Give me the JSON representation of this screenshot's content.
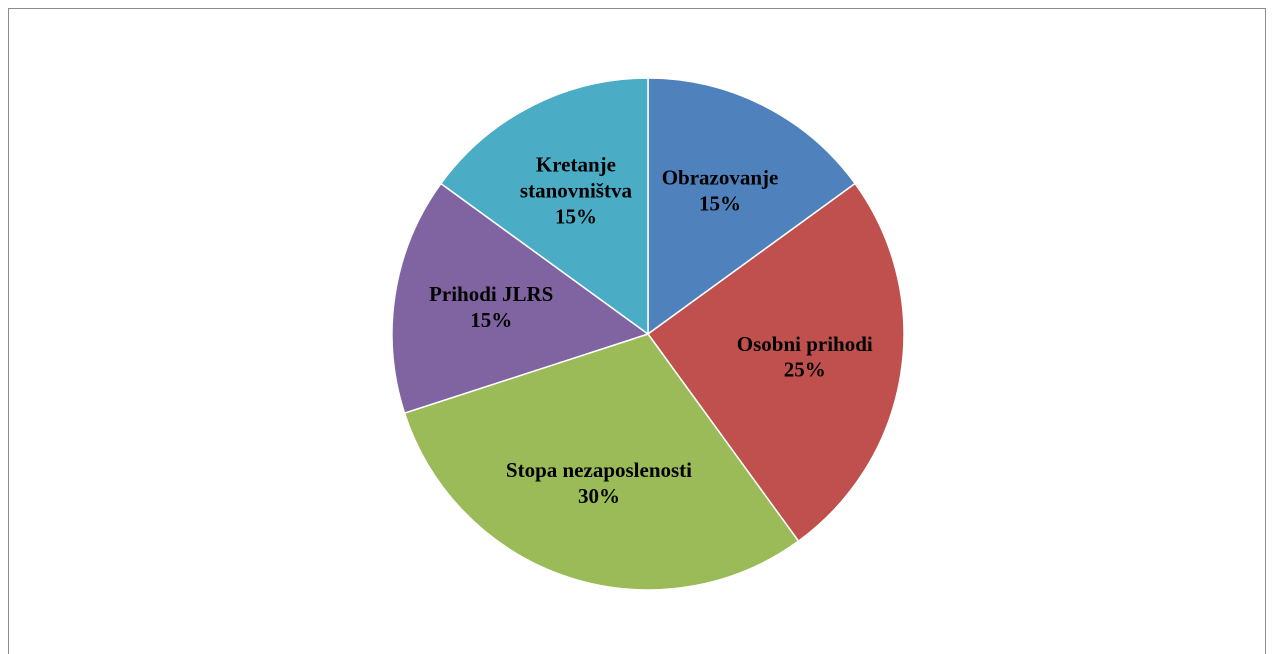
{
  "chart_data": {
    "type": "pie",
    "categories": [
      "Obrazovanje",
      "Osobni prihodi",
      "Stopa nezaposlenosti",
      "Prihodi JLRS",
      "Kretanje\nstanovništva"
    ],
    "values": [
      15,
      25,
      30,
      15,
      15
    ],
    "value_labels": [
      "15%",
      "25%",
      "30%",
      "15%",
      "15%"
    ],
    "colors": [
      "#4f81bd",
      "#c0504d",
      "#9bbb59",
      "#8064a2",
      "#4bacc6"
    ]
  }
}
